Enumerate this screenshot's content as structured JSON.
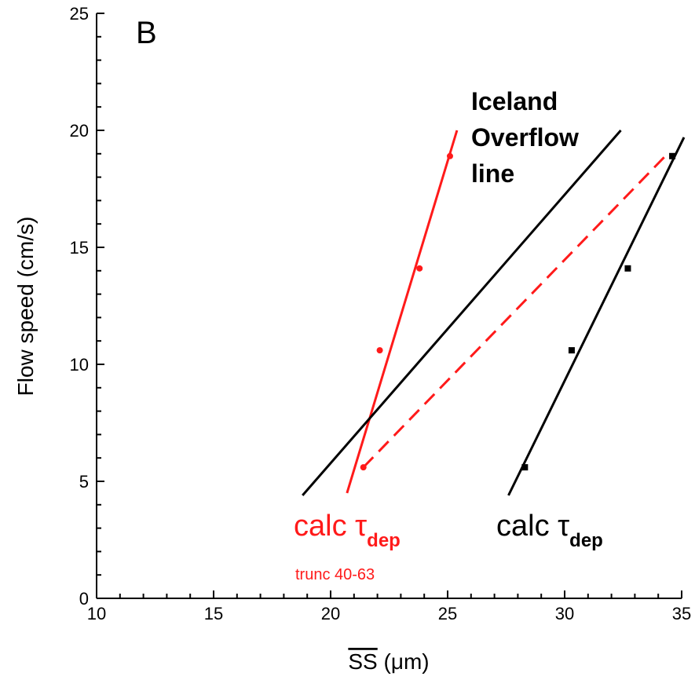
{
  "chart_data": {
    "type": "scatter",
    "panel_label": "B",
    "xlabel": "SS",
    "xlabel_unit": " (μm)",
    "ylabel": "Flow speed (cm/s)",
    "xlim": [
      10,
      35
    ],
    "ylim": [
      0,
      25
    ],
    "x_ticks": [
      10,
      15,
      20,
      25,
      30,
      35
    ],
    "y_ticks": [
      0,
      5,
      10,
      15,
      20,
      25
    ],
    "x_tick_labels": [
      "10",
      "15",
      "20",
      "25",
      "30",
      "35"
    ],
    "y_tick_labels": [
      "0",
      "5",
      "10",
      "15",
      "20",
      "25"
    ],
    "series": [
      {
        "color": "#ff1a1a",
        "marker": "circle",
        "points": [
          {
            "x": 21.4,
            "y": 5.6
          },
          {
            "x": 22.1,
            "y": 10.6
          },
          {
            "x": 23.8,
            "y": 14.1
          },
          {
            "x": 25.1,
            "y": 18.9
          }
        ],
        "fit_line": [
          [
            20.7,
            4.5
          ],
          [
            25.4,
            20.0
          ]
        ]
      },
      {
        "color": "#000000",
        "marker": "square",
        "points": [
          {
            "x": 28.3,
            "y": 5.6
          },
          {
            "x": 30.3,
            "y": 10.6
          },
          {
            "x": 32.7,
            "y": 14.1
          },
          {
            "x": 34.6,
            "y": 18.9
          }
        ],
        "fit_line": [
          [
            27.6,
            4.4
          ],
          [
            35.1,
            19.7
          ]
        ]
      }
    ],
    "lines": [
      {
        "color": "#000000",
        "style": "solid",
        "from": [
          18.8,
          4.4
        ],
        "to": [
          32.4,
          20.0
        ]
      },
      {
        "color": "#ff1a1a",
        "style": "dashed",
        "from": [
          21.4,
          5.6
        ],
        "to": [
          34.3,
          18.9
        ]
      }
    ],
    "annotations": {
      "iceland_line1": "Iceland",
      "iceland_line2": "Overflow",
      "iceland_line3": "line",
      "calc_red_main": "calc τ",
      "calc_red_sub": "dep",
      "trunc": "trunc 40-63",
      "calc_black_main": "calc τ",
      "calc_black_sub": "dep"
    }
  }
}
